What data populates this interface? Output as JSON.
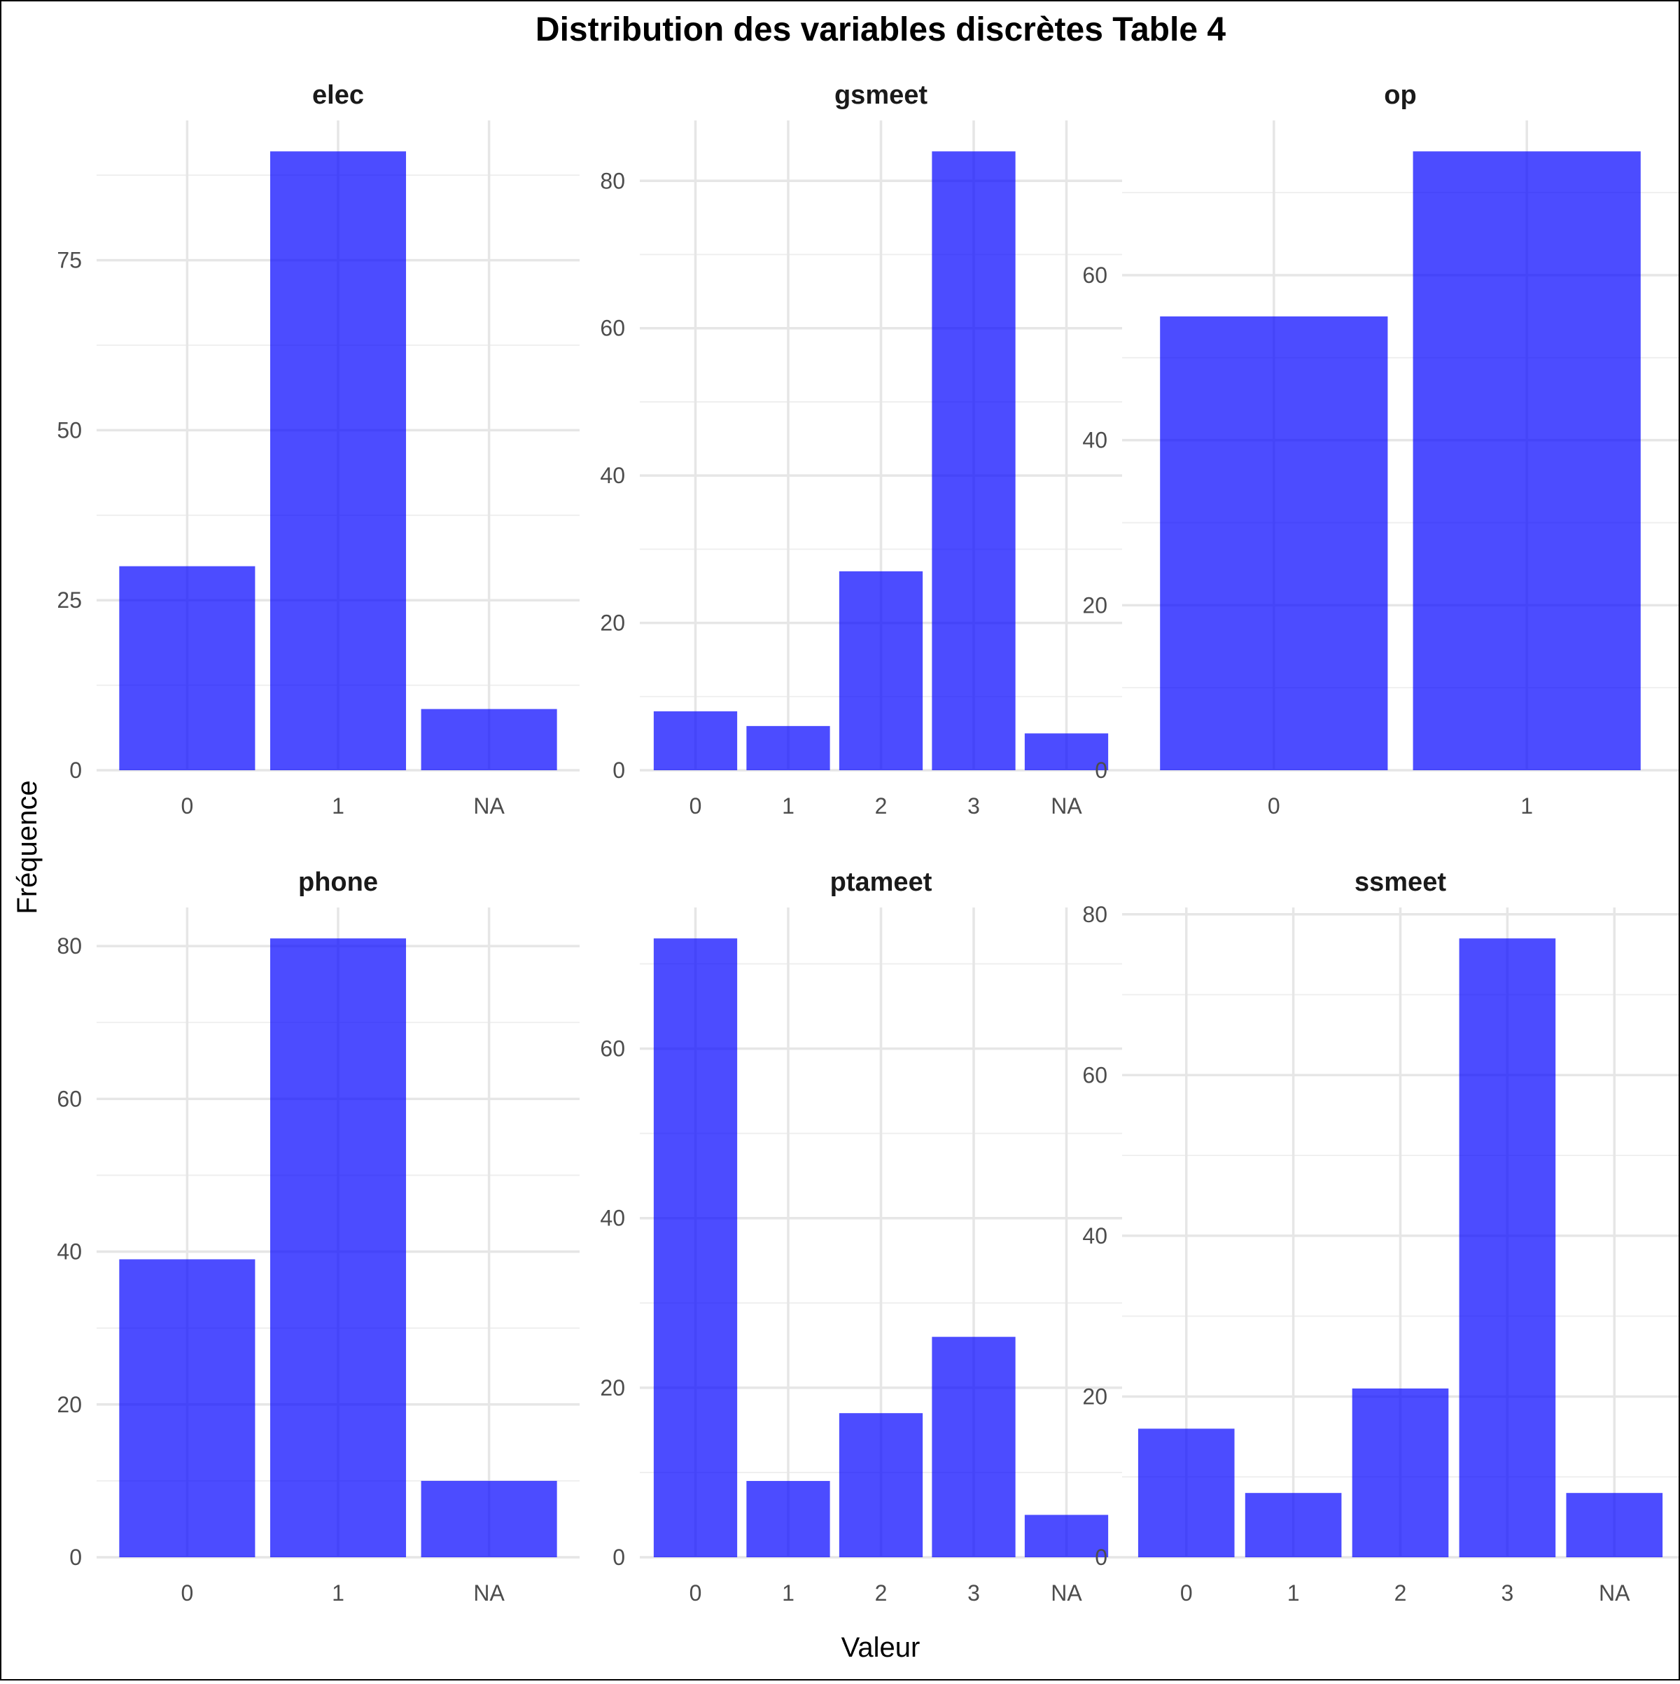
{
  "title": "Distribution des variables discrètes Table 4",
  "xlabel": "Valeur",
  "ylabel": "Fréquence",
  "colors": {
    "bar": "#0000ff"
  },
  "chart_data": [
    {
      "type": "bar",
      "title": "elec",
      "categories": [
        "0",
        "1",
        "NA"
      ],
      "values": [
        30,
        91,
        9
      ],
      "ylim": [
        0,
        95.55
      ],
      "yticks": [
        0,
        25,
        50,
        75
      ],
      "minor_step": 12.5
    },
    {
      "type": "bar",
      "title": "gsmeet",
      "categories": [
        "0",
        "1",
        "2",
        "3",
        "NA"
      ],
      "values": [
        8,
        6,
        27,
        84,
        5
      ],
      "ylim": [
        0,
        88.2
      ],
      "yticks": [
        0,
        20,
        40,
        60,
        80
      ],
      "minor_step": 10
    },
    {
      "type": "bar",
      "title": "op",
      "categories": [
        "0",
        "1"
      ],
      "values": [
        55,
        75
      ],
      "ylim": [
        0,
        78.75
      ],
      "yticks": [
        0,
        20,
        40,
        60
      ],
      "minor_step": 10
    },
    {
      "type": "bar",
      "title": "phone",
      "categories": [
        "0",
        "1",
        "NA"
      ],
      "values": [
        39,
        81,
        10
      ],
      "ylim": [
        0,
        85.05
      ],
      "yticks": [
        0,
        20,
        40,
        60,
        80
      ],
      "minor_step": 10
    },
    {
      "type": "bar",
      "title": "ptameet",
      "categories": [
        "0",
        "1",
        "2",
        "3",
        "NA"
      ],
      "values": [
        73,
        9,
        17,
        26,
        5
      ],
      "ylim": [
        0,
        76.65
      ],
      "yticks": [
        0,
        20,
        40,
        60
      ],
      "minor_step": 10
    },
    {
      "type": "bar",
      "title": "ssmeet",
      "categories": [
        "0",
        "1",
        "2",
        "3",
        "NA"
      ],
      "values": [
        16,
        8,
        21,
        77,
        8
      ],
      "ylim": [
        0,
        80.85
      ],
      "yticks": [
        0,
        20,
        40,
        60,
        80
      ],
      "minor_step": 10
    }
  ]
}
